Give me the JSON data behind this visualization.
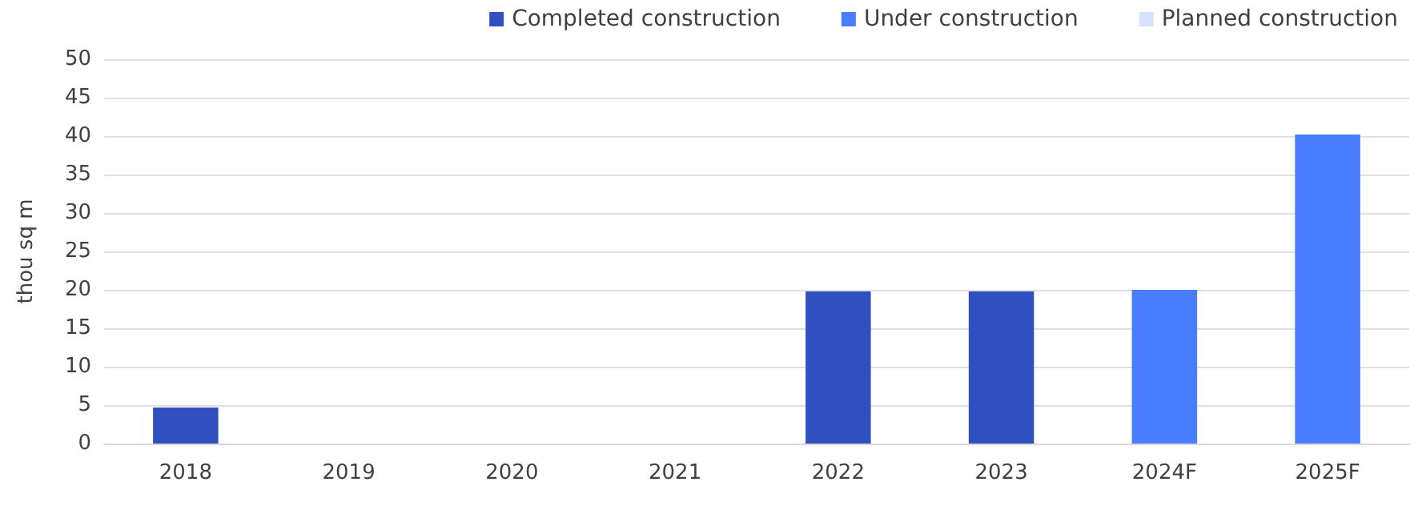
{
  "chart_data": {
    "type": "bar",
    "ylabel": "thou sq m",
    "categories": [
      "2018",
      "2019",
      "2020",
      "2021",
      "2022",
      "2023",
      "2024F",
      "2025F"
    ],
    "series": [
      {
        "name": "Completed construction",
        "color": "#3150c0",
        "values": [
          4.7,
          0,
          0,
          0,
          19.8,
          19.8,
          null,
          null
        ]
      },
      {
        "name": "Under construction",
        "color": "#4a7dff",
        "values": [
          null,
          null,
          null,
          null,
          null,
          null,
          20,
          40.2
        ]
      },
      {
        "name": "Planned construction",
        "color": "#d6e2fb",
        "values": [
          null,
          null,
          null,
          null,
          null,
          null,
          null,
          null
        ]
      }
    ],
    "stacked": true,
    "ylim": [
      0,
      50
    ],
    "yticks": [
      0,
      5,
      10,
      15,
      20,
      25,
      30,
      35,
      40,
      45,
      50
    ],
    "grid": "y",
    "legend": "top right"
  }
}
